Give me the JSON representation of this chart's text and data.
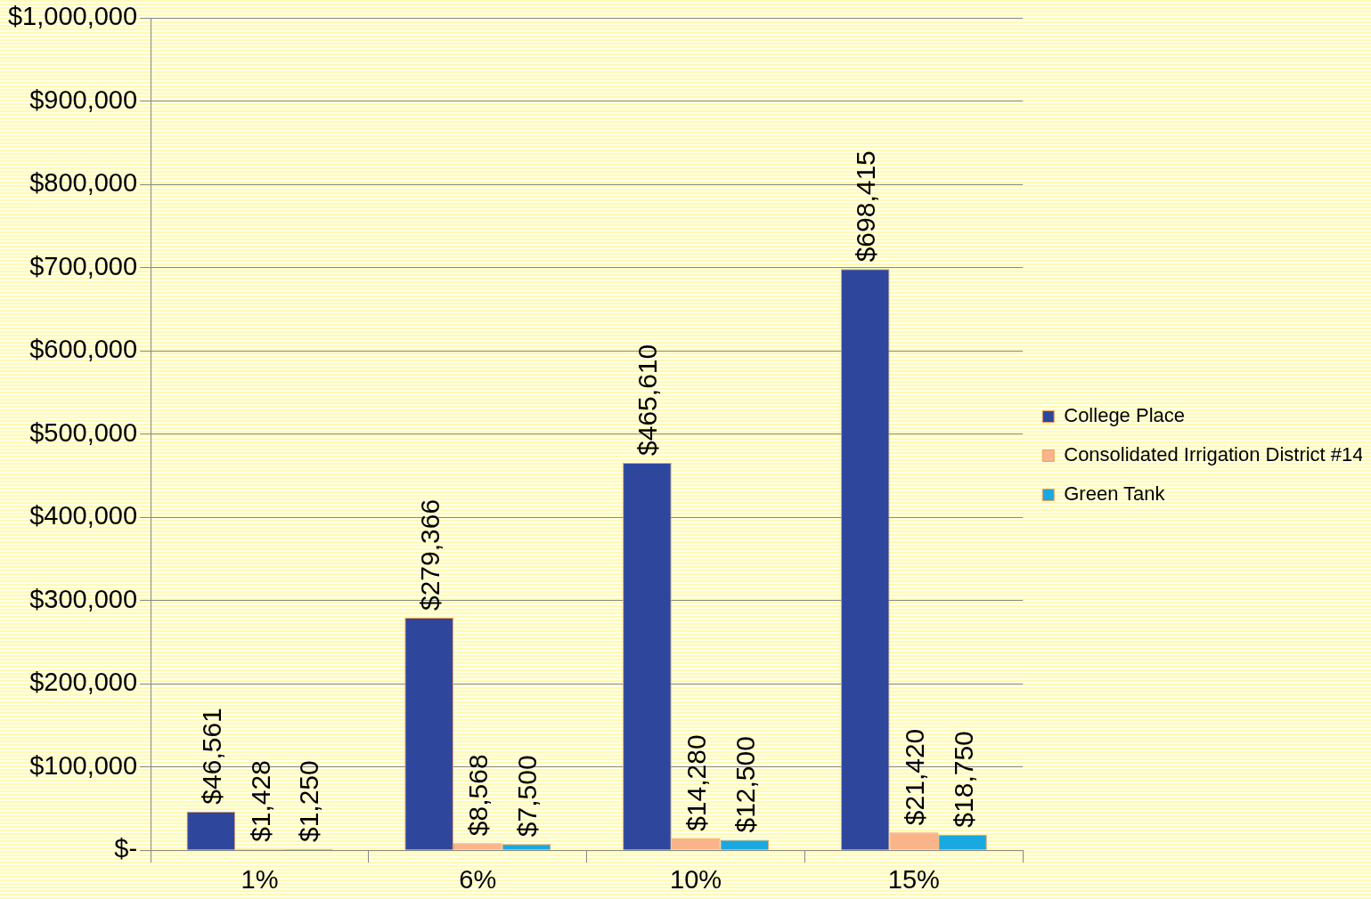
{
  "chart_data": {
    "type": "bar",
    "categories": [
      "1%",
      "6%",
      "10%",
      "15%"
    ],
    "series": [
      {
        "name": "College Place",
        "color": "#2e479c",
        "values": [
          46561,
          279366,
          465610,
          698415
        ],
        "value_labels": [
          "$46,561",
          "$279,366",
          "$465,610",
          "$698,415"
        ]
      },
      {
        "name": "Consolidated Irrigation District #14",
        "color": "#f9b48a",
        "values": [
          1428,
          8568,
          14280,
          21420
        ],
        "value_labels": [
          "$1,428",
          "$8,568",
          "$14,280",
          "$21,420"
        ]
      },
      {
        "name": "Green Tank",
        "color": "#1aa8e0",
        "values": [
          1250,
          7500,
          12500,
          18750
        ],
        "value_labels": [
          "$1,250",
          "$7,500",
          "$12,500",
          "$18,750"
        ]
      }
    ],
    "ylim": [
      0,
      1000000
    ],
    "yticks": [
      {
        "value": 0,
        "label": "$-"
      },
      {
        "value": 100000,
        "label": "$100,000"
      },
      {
        "value": 200000,
        "label": "$200,000"
      },
      {
        "value": 300000,
        "label": "$300,000"
      },
      {
        "value": 400000,
        "label": "$400,000"
      },
      {
        "value": 500000,
        "label": "$500,000"
      },
      {
        "value": 600000,
        "label": "$600,000"
      },
      {
        "value": 700000,
        "label": "$700,000"
      },
      {
        "value": 800000,
        "label": "$800,000"
      },
      {
        "value": 900000,
        "label": "$900,000"
      },
      {
        "value": 1000000,
        "label": "$1,000,000"
      }
    ],
    "grid": "y",
    "legend": "right"
  }
}
